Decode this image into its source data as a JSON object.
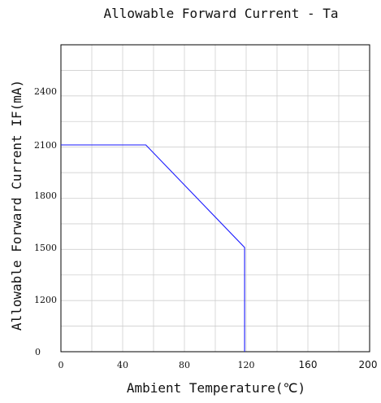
{
  "chart_data": {
    "type": "line",
    "title": "Allowable Forward Current - Ta",
    "xlabel": "Ambient Temperature(℃)",
    "ylabel": "Allowable Forward Current  IF(mA)",
    "xlim": [
      0,
      200
    ],
    "x_ticks": [
      {
        "value": 0,
        "label": "0"
      },
      {
        "value": 40,
        "label": "40"
      },
      {
        "value": 80,
        "label": "80"
      },
      {
        "value": 120,
        "label": "120"
      },
      {
        "value": 160,
        "label": "160"
      },
      {
        "value": 200,
        "label": "200"
      }
    ],
    "y_ticks": [
      {
        "value": 0,
        "label": "0"
      },
      {
        "value": 1200,
        "label": "1200"
      },
      {
        "value": 1500,
        "label": "1500"
      },
      {
        "value": 1800,
        "label": "1800"
      },
      {
        "value": 2100,
        "label": "2100"
      },
      {
        "value": 2400,
        "label": "2400"
      }
    ],
    "grid": true,
    "series": [
      {
        "color": "#1a1aff",
        "points": [
          [
            0,
            2100
          ],
          [
            55,
            2100
          ],
          [
            119,
            1500
          ],
          [
            119,
            0
          ]
        ]
      }
    ]
  }
}
